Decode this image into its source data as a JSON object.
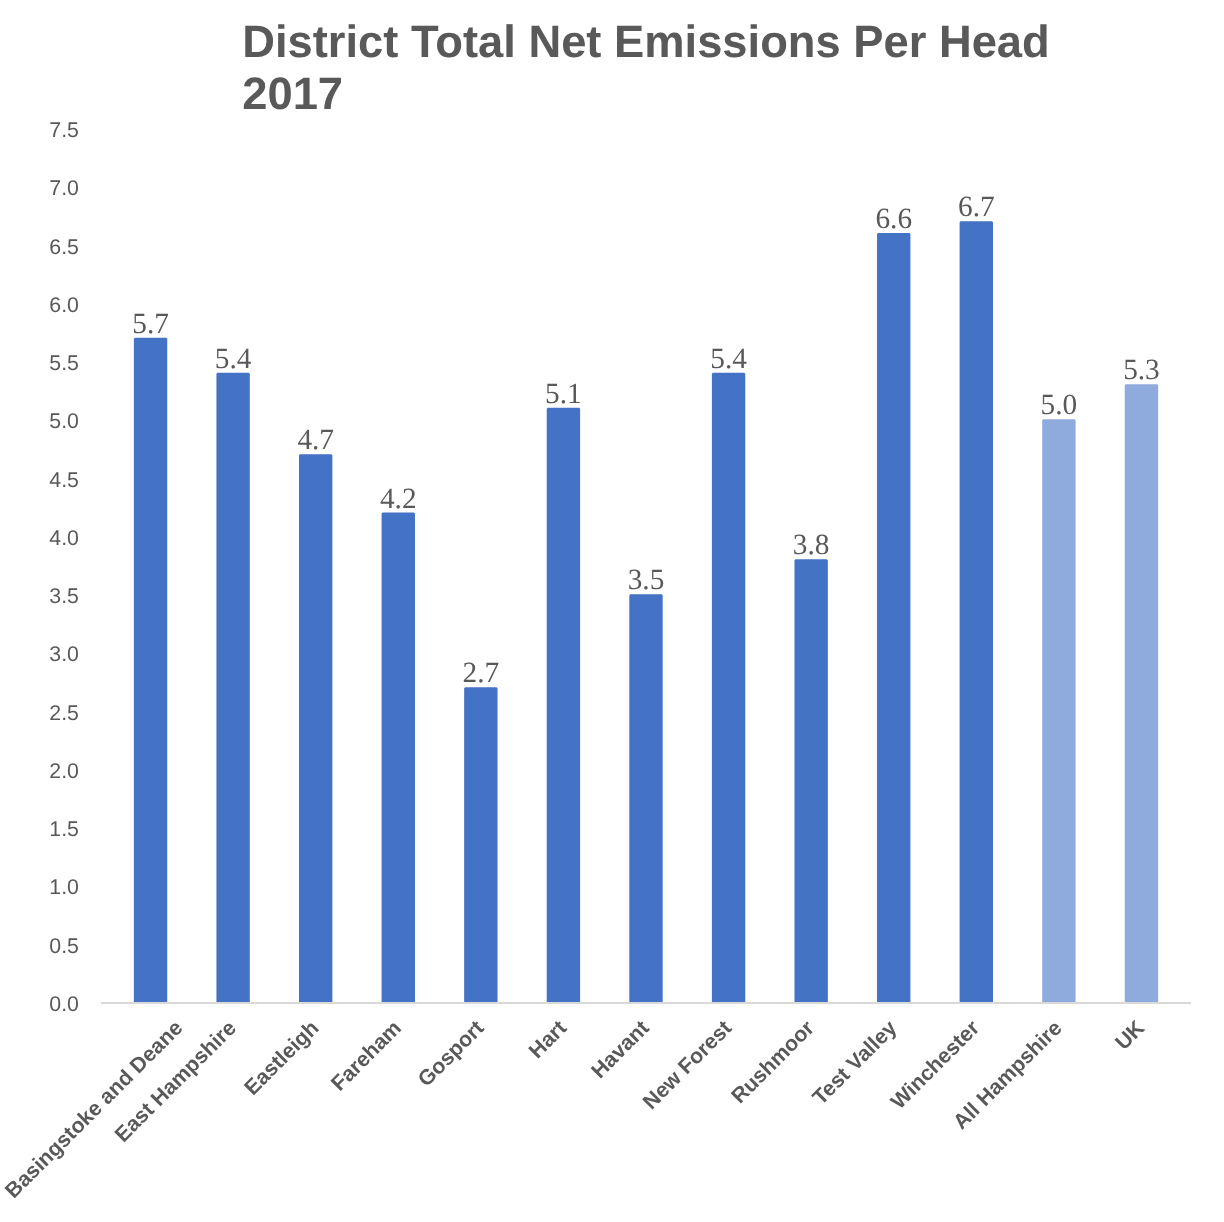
{
  "chart_data": {
    "type": "bar",
    "title": "District Total Net Emissions Per Head\n2017",
    "categories": [
      "Basingstoke and Deane",
      "East Hampshire",
      "Eastleigh",
      "Fareham",
      "Gosport",
      "Hart",
      "Havant",
      "New Forest",
      "Rushmoor",
      "Test Valley",
      "Winchester",
      "All Hampshire",
      "UK"
    ],
    "values": [
      5.7,
      5.4,
      4.7,
      4.2,
      2.7,
      5.1,
      3.5,
      5.4,
      3.8,
      6.6,
      6.7,
      5.0,
      5.3
    ],
    "value_labels": [
      "5.7",
      "5.4",
      "4.7",
      "4.2",
      "2.7",
      "5.1",
      "3.5",
      "5.4",
      "3.8",
      "6.6",
      "6.7",
      "5.0",
      "5.3"
    ],
    "colors": [
      "#4472c4",
      "#4472c4",
      "#4472c4",
      "#4472c4",
      "#4472c4",
      "#4472c4",
      "#4472c4",
      "#4472c4",
      "#4472c4",
      "#4472c4",
      "#4472c4",
      "#8faadc",
      "#8faadc"
    ],
    "ylim": [
      0,
      7.5
    ],
    "yticks": [
      {
        "value": 0,
        "label": "0.0"
      },
      {
        "value": 0.5,
        "label": "0.5"
      },
      {
        "value": 1,
        "label": "1.0"
      },
      {
        "value": 1.5,
        "label": "1.5"
      },
      {
        "value": 2,
        "label": "2.0"
      },
      {
        "value": 2.5,
        "label": "2.5"
      },
      {
        "value": 3,
        "label": "3.0"
      },
      {
        "value": 3.5,
        "label": "3.5"
      },
      {
        "value": 4,
        "label": "4.0"
      },
      {
        "value": 4.5,
        "label": "4.5"
      },
      {
        "value": 5,
        "label": "5.0"
      },
      {
        "value": 5.5,
        "label": "5.5"
      },
      {
        "value": 6,
        "label": "6.0"
      },
      {
        "value": 6.5,
        "label": "6.5"
      },
      {
        "value": 7,
        "label": "7.0"
      },
      {
        "value": 7.5,
        "label": "7.5"
      }
    ],
    "grid": false
  }
}
